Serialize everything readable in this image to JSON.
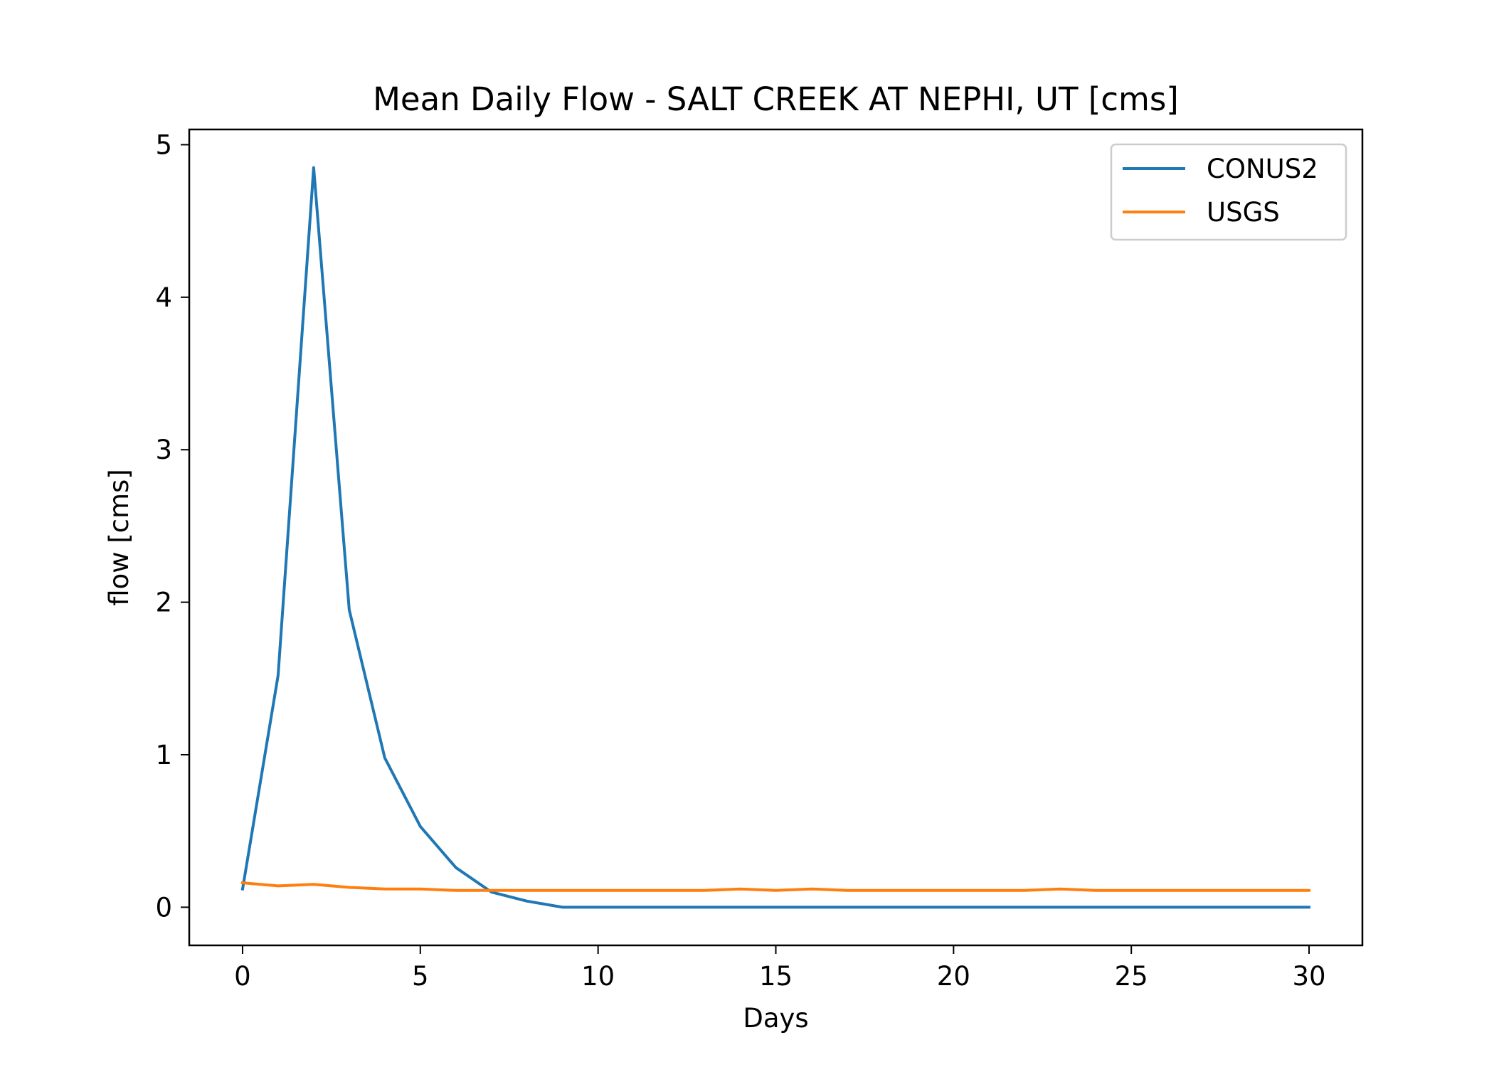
{
  "chart_data": {
    "type": "line",
    "title": "Mean Daily Flow - SALT CREEK AT NEPHI, UT [cms]",
    "xlabel": "Days",
    "ylabel": "flow [cms]",
    "xlim": [
      -1.5,
      31.5
    ],
    "ylim": [
      -0.25,
      5.1
    ],
    "xticks": [
      0,
      5,
      10,
      15,
      20,
      25,
      30
    ],
    "yticks": [
      0,
      1,
      2,
      3,
      4,
      5
    ],
    "grid": false,
    "legend_position": "top-right",
    "x": [
      0,
      1,
      2,
      3,
      4,
      5,
      6,
      7,
      8,
      9,
      10,
      11,
      12,
      13,
      14,
      15,
      16,
      17,
      18,
      19,
      20,
      21,
      22,
      23,
      24,
      25,
      26,
      27,
      28,
      29,
      30
    ],
    "series": [
      {
        "name": "CONUS2",
        "color": "#1f77b4",
        "values": [
          0.12,
          1.52,
          4.85,
          1.95,
          0.98,
          0.53,
          0.26,
          0.1,
          0.04,
          0.0,
          0.0,
          0.0,
          0.0,
          0.0,
          0.0,
          0.0,
          0.0,
          0.0,
          0.0,
          0.0,
          0.0,
          0.0,
          0.0,
          0.0,
          0.0,
          0.0,
          0.0,
          0.0,
          0.0,
          0.0,
          0.0
        ]
      },
      {
        "name": "USGS",
        "color": "#ff7f0e",
        "values": [
          0.16,
          0.14,
          0.15,
          0.13,
          0.12,
          0.12,
          0.11,
          0.11,
          0.11,
          0.11,
          0.11,
          0.11,
          0.11,
          0.11,
          0.12,
          0.11,
          0.12,
          0.11,
          0.11,
          0.11,
          0.11,
          0.11,
          0.11,
          0.12,
          0.11,
          0.11,
          0.11,
          0.11,
          0.11,
          0.11,
          0.11
        ]
      }
    ]
  }
}
